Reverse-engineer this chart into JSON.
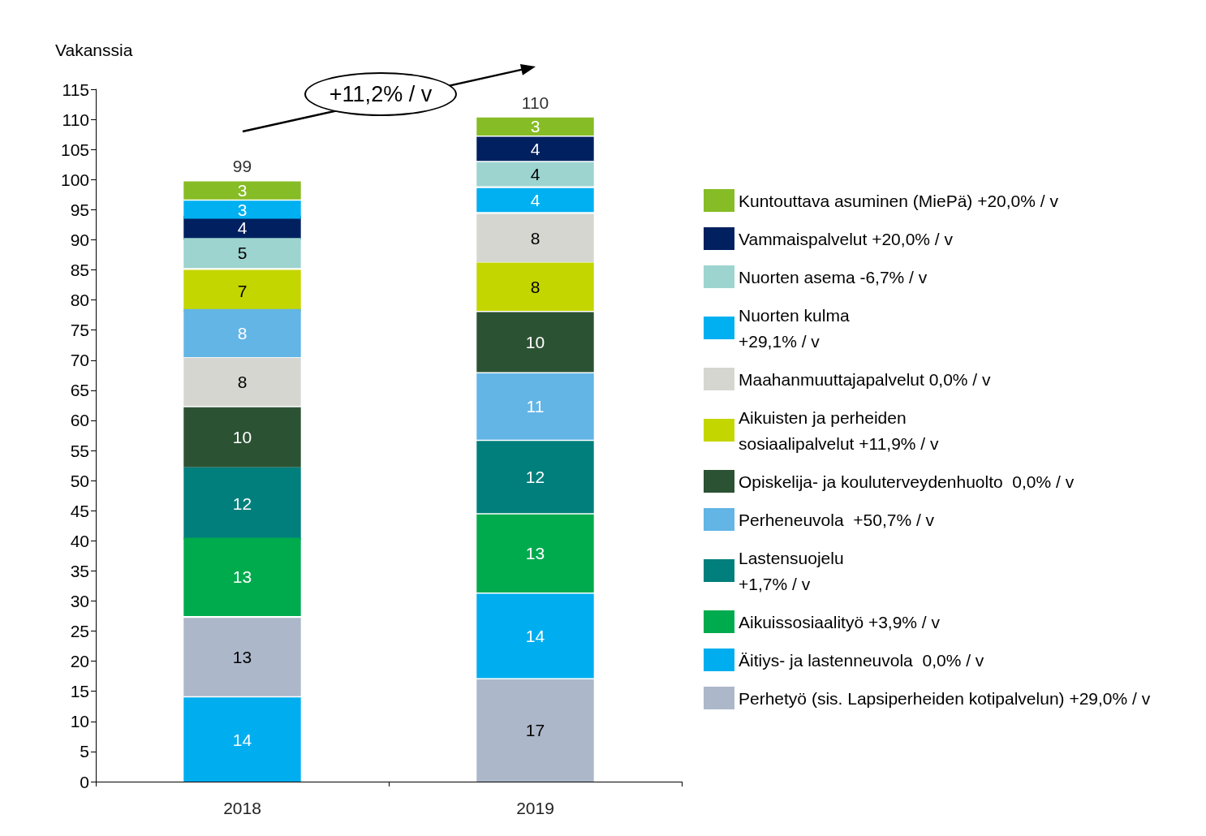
{
  "chart_data": {
    "type": "bar",
    "ylabel": "Vakanssia",
    "categories": [
      "2018",
      "2019"
    ],
    "series": [
      {
        "name": "Kuntouttava asuminen (MiePä) +20,0% / v",
        "color": "#86bc25",
        "values": [
          3,
          3
        ],
        "base": [
          96.7,
          107.3
        ]
      },
      {
        "name": "Vammaispalvelut +20,0% / v",
        "color": "#00205f",
        "values": [
          4,
          4
        ],
        "base": [
          90,
          103.1
        ]
      },
      {
        "name": "Nuorten asema -6,7% / v",
        "color": "#9dd4cf",
        "values": [
          5,
          4
        ],
        "base": [
          85.3,
          98.9
        ]
      },
      {
        "name": "Nuorten kulma\n+29,1% / v",
        "color": "#00b0f0",
        "values": [
          3,
          4
        ],
        "base": [
          93.5,
          94.6
        ]
      },
      {
        "name": "Maahanmuuttajapalvelut 0,0% / v",
        "color": "#d6d6d1",
        "values": [
          8,
          8
        ],
        "base": [
          62.4,
          86.3
        ]
      },
      {
        "name": "Aikuisten ja perheiden\nsosiaalipalvelut +11,9% / v",
        "color": "#c4d600",
        "values": [
          7,
          8
        ],
        "base": [
          78,
          78.2
        ]
      },
      {
        "name": "Opiskelija- ja kouluterveydenhuolto  0,0% / v",
        "color": "#2c5234",
        "values": [
          10,
          10
        ],
        "base": [
          52.2,
          68
        ]
      },
      {
        "name": "Perheneuvola  +50,7% / v",
        "color": "#62b5e5",
        "values": [
          8,
          11
        ],
        "base": [
          70.5,
          56.8
        ]
      },
      {
        "name": "Lastensuojelu\n+1,7% / v",
        "color": "#007f7c",
        "values": [
          12,
          12
        ],
        "base": [
          40.2,
          44.6
        ]
      },
      {
        "name": "Aikuissosiaalityö +3,9% / v",
        "color": "#00ab4e",
        "values": [
          13,
          13
        ],
        "base": [
          27.5,
          31.4
        ]
      },
      {
        "name": "Äitiys- ja lastenneuvola  0,0% / v",
        "color": "#00aeef",
        "values": [
          14,
          14
        ],
        "base": [
          0,
          17.2
        ]
      },
      {
        "name": "Perhetyö (sis. Lapsiperheiden kotipalvelun) +29,0% / v",
        "color": "#adb7ca",
        "values": [
          13,
          17
        ],
        "base": [
          14.2,
          0
        ]
      }
    ],
    "totals": [
      "99",
      "110"
    ],
    "data_labels": true,
    "ylim": [
      0,
      115
    ],
    "yticks": [
      0,
      5,
      10,
      15,
      20,
      25,
      30,
      35,
      40,
      45,
      50,
      55,
      60,
      65,
      70,
      75,
      80,
      85,
      90,
      95,
      100,
      105,
      110,
      115
    ],
    "grid": false,
    "legend": "right",
    "annotations": [
      "+11,2% / v"
    ]
  }
}
